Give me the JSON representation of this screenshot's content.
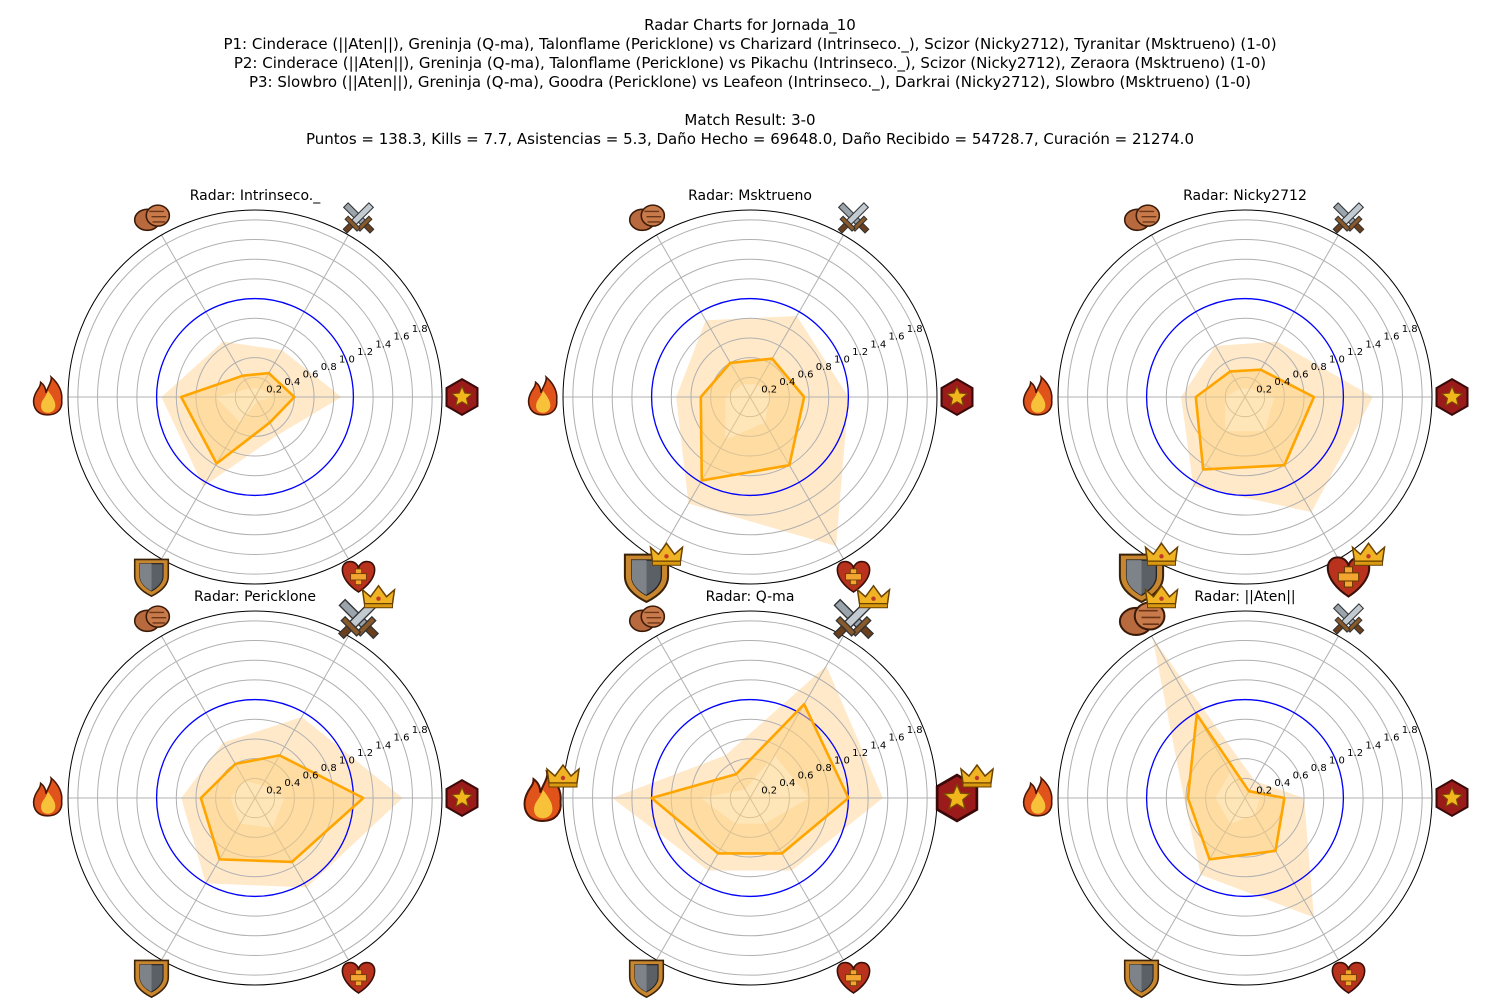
{
  "header": {
    "title": "Radar Charts for Jornada_10",
    "p1": "P1: Cinderace (||Aten||), Greninja (Q-ma), Talonflame (Pericklone) vs Charizard (Intrinseco._), Scizor (Nicky2712), Tyranitar (Msktrueno) (1-0)",
    "p2": "P2: Cinderace (||Aten||), Greninja (Q-ma), Talonflame (Pericklone) vs Pikachu (Intrinseco._), Scizor (Nicky2712), Zeraora (Msktrueno) (1-0)",
    "p3": "P3: Slowbro (||Aten||), Greninja (Q-ma), Goodra (Pericklone) vs Leafeon (Intrinseco._), Darkrai (Nicky2712), Slowbro (Msktrueno) (1-0)",
    "result": "Match Result: 3-0",
    "stats": "Puntos = 138.3, Kills = 7.7, Asistencias = 5.3, Daño Hecho = 69648.0, Daño Recibido = 54728.7, Curación = 21274.0"
  },
  "colors": {
    "line": "#ffa500",
    "fill": "#ffd27f",
    "band": "#ffe9c9",
    "reference": "#0000ff",
    "grid": "#b0b0b0"
  },
  "chart_data": [
    {
      "type": "radar",
      "title": "Radar: Intrinseco._",
      "axes": [
        "sword-icon",
        "hexagon-star-icon",
        "heart-cross-icon",
        "shield-icon",
        "fire-icon",
        "fist-icon"
      ],
      "rticks": [
        "0.2",
        "0.4",
        "0.6",
        "0.8",
        "1.0",
        "1.2",
        "1.4",
        "1.6",
        "1.8"
      ],
      "rlim": [
        0,
        1.9
      ],
      "reference": 1.0,
      "values": [
        0.28,
        0.4,
        0.3,
        0.78,
        0.75,
        0.25
      ],
      "band_max": [
        0.55,
        0.88,
        0.45,
        1.05,
        0.95,
        0.65
      ],
      "band_min": [
        0.1,
        0.2,
        0.05,
        0.3,
        0.4,
        0.1
      ],
      "crowns": []
    },
    {
      "type": "radar",
      "title": "Radar: Msktrueno",
      "axes": [
        "sword-icon",
        "hexagon-star-icon",
        "heart-cross-icon",
        "shield-icon",
        "fire-icon",
        "fist-icon"
      ],
      "rticks": [
        "0.2",
        "0.4",
        "0.6",
        "0.8",
        "1.0",
        "1.2",
        "1.4",
        "1.6",
        "1.8"
      ],
      "rlim": [
        0,
        1.9
      ],
      "reference": 1.0,
      "values": [
        0.45,
        0.55,
        0.8,
        0.98,
        0.5,
        0.4
      ],
      "band_max": [
        0.95,
        1.0,
        1.75,
        1.25,
        0.75,
        0.9
      ],
      "band_min": [
        0.15,
        0.2,
        0.3,
        0.5,
        0.25,
        0.15
      ],
      "crowns": [
        "shield-icon"
      ]
    },
    {
      "type": "radar",
      "title": "Radar: Nicky2712",
      "axes": [
        "sword-icon",
        "hexagon-star-icon",
        "heart-cross-icon",
        "shield-icon",
        "fire-icon",
        "fist-icon"
      ],
      "rticks": [
        "0.2",
        "0.4",
        "0.6",
        "0.8",
        "1.0",
        "1.2",
        "1.4",
        "1.6",
        "1.8"
      ],
      "rlim": [
        0,
        1.9
      ],
      "reference": 1.0,
      "values": [
        0.32,
        0.7,
        0.8,
        0.85,
        0.5,
        0.3
      ],
      "band_max": [
        0.65,
        1.3,
        1.35,
        1.05,
        0.65,
        0.6
      ],
      "band_min": [
        0.1,
        0.3,
        0.4,
        0.4,
        0.2,
        0.1
      ],
      "crowns": [
        "heart-cross-icon",
        "shield-icon"
      ]
    },
    {
      "type": "radar",
      "title": "Radar: Pericklone",
      "axes": [
        "sword-icon",
        "hexagon-star-icon",
        "heart-cross-icon",
        "shield-icon",
        "fire-icon",
        "fist-icon"
      ],
      "rticks": [
        "0.2",
        "0.4",
        "0.6",
        "0.8",
        "1.0",
        "1.2",
        "1.4",
        "1.6",
        "1.8"
      ],
      "rlim": [
        0,
        1.9
      ],
      "reference": 1.0,
      "values": [
        0.5,
        1.1,
        0.75,
        0.72,
        0.55,
        0.4
      ],
      "band_max": [
        0.95,
        1.5,
        1.05,
        1.0,
        0.75,
        0.65
      ],
      "band_min": [
        0.15,
        0.3,
        0.35,
        0.3,
        0.25,
        0.2
      ],
      "crowns": [
        "sword-icon"
      ]
    },
    {
      "type": "radar",
      "title": "Radar: Q-ma",
      "axes": [
        "sword-icon",
        "hexagon-star-icon",
        "heart-cross-icon",
        "shield-icon",
        "fire-icon",
        "fist-icon"
      ],
      "rticks": [
        "0.2",
        "0.4",
        "0.6",
        "0.8",
        "1.0",
        "1.2",
        "1.4",
        "1.6",
        "1.8"
      ],
      "rlim": [
        0,
        1.9
      ],
      "reference": 1.0,
      "values": [
        1.1,
        1.0,
        0.65,
        0.65,
        1.0,
        0.28
      ],
      "band_max": [
        1.55,
        1.35,
        0.85,
        0.85,
        1.4,
        0.5
      ],
      "band_min": [
        0.5,
        0.6,
        0.3,
        0.3,
        0.5,
        0.1
      ],
      "crowns": [
        "sword-icon",
        "hexagon-star-icon",
        "fire-icon"
      ]
    },
    {
      "type": "radar",
      "title": "Radar: ||Aten||",
      "axes": [
        "sword-icon",
        "hexagon-star-icon",
        "heart-cross-icon",
        "shield-icon",
        "fire-icon",
        "fist-icon"
      ],
      "rticks": [
        "0.2",
        "0.4",
        "0.6",
        "0.8",
        "1.0",
        "1.2",
        "1.4",
        "1.6",
        "1.8"
      ],
      "rlim": [
        0,
        1.9
      ],
      "reference": 1.0,
      "values": [
        0.08,
        0.4,
        0.62,
        0.72,
        0.58,
        0.98
      ],
      "band_max": [
        0.2,
        0.6,
        1.4,
        0.9,
        0.62,
        1.88
      ],
      "band_min": [
        0.02,
        0.15,
        0.2,
        0.3,
        0.3,
        0.3
      ],
      "crowns": [
        "fist-icon"
      ]
    }
  ]
}
